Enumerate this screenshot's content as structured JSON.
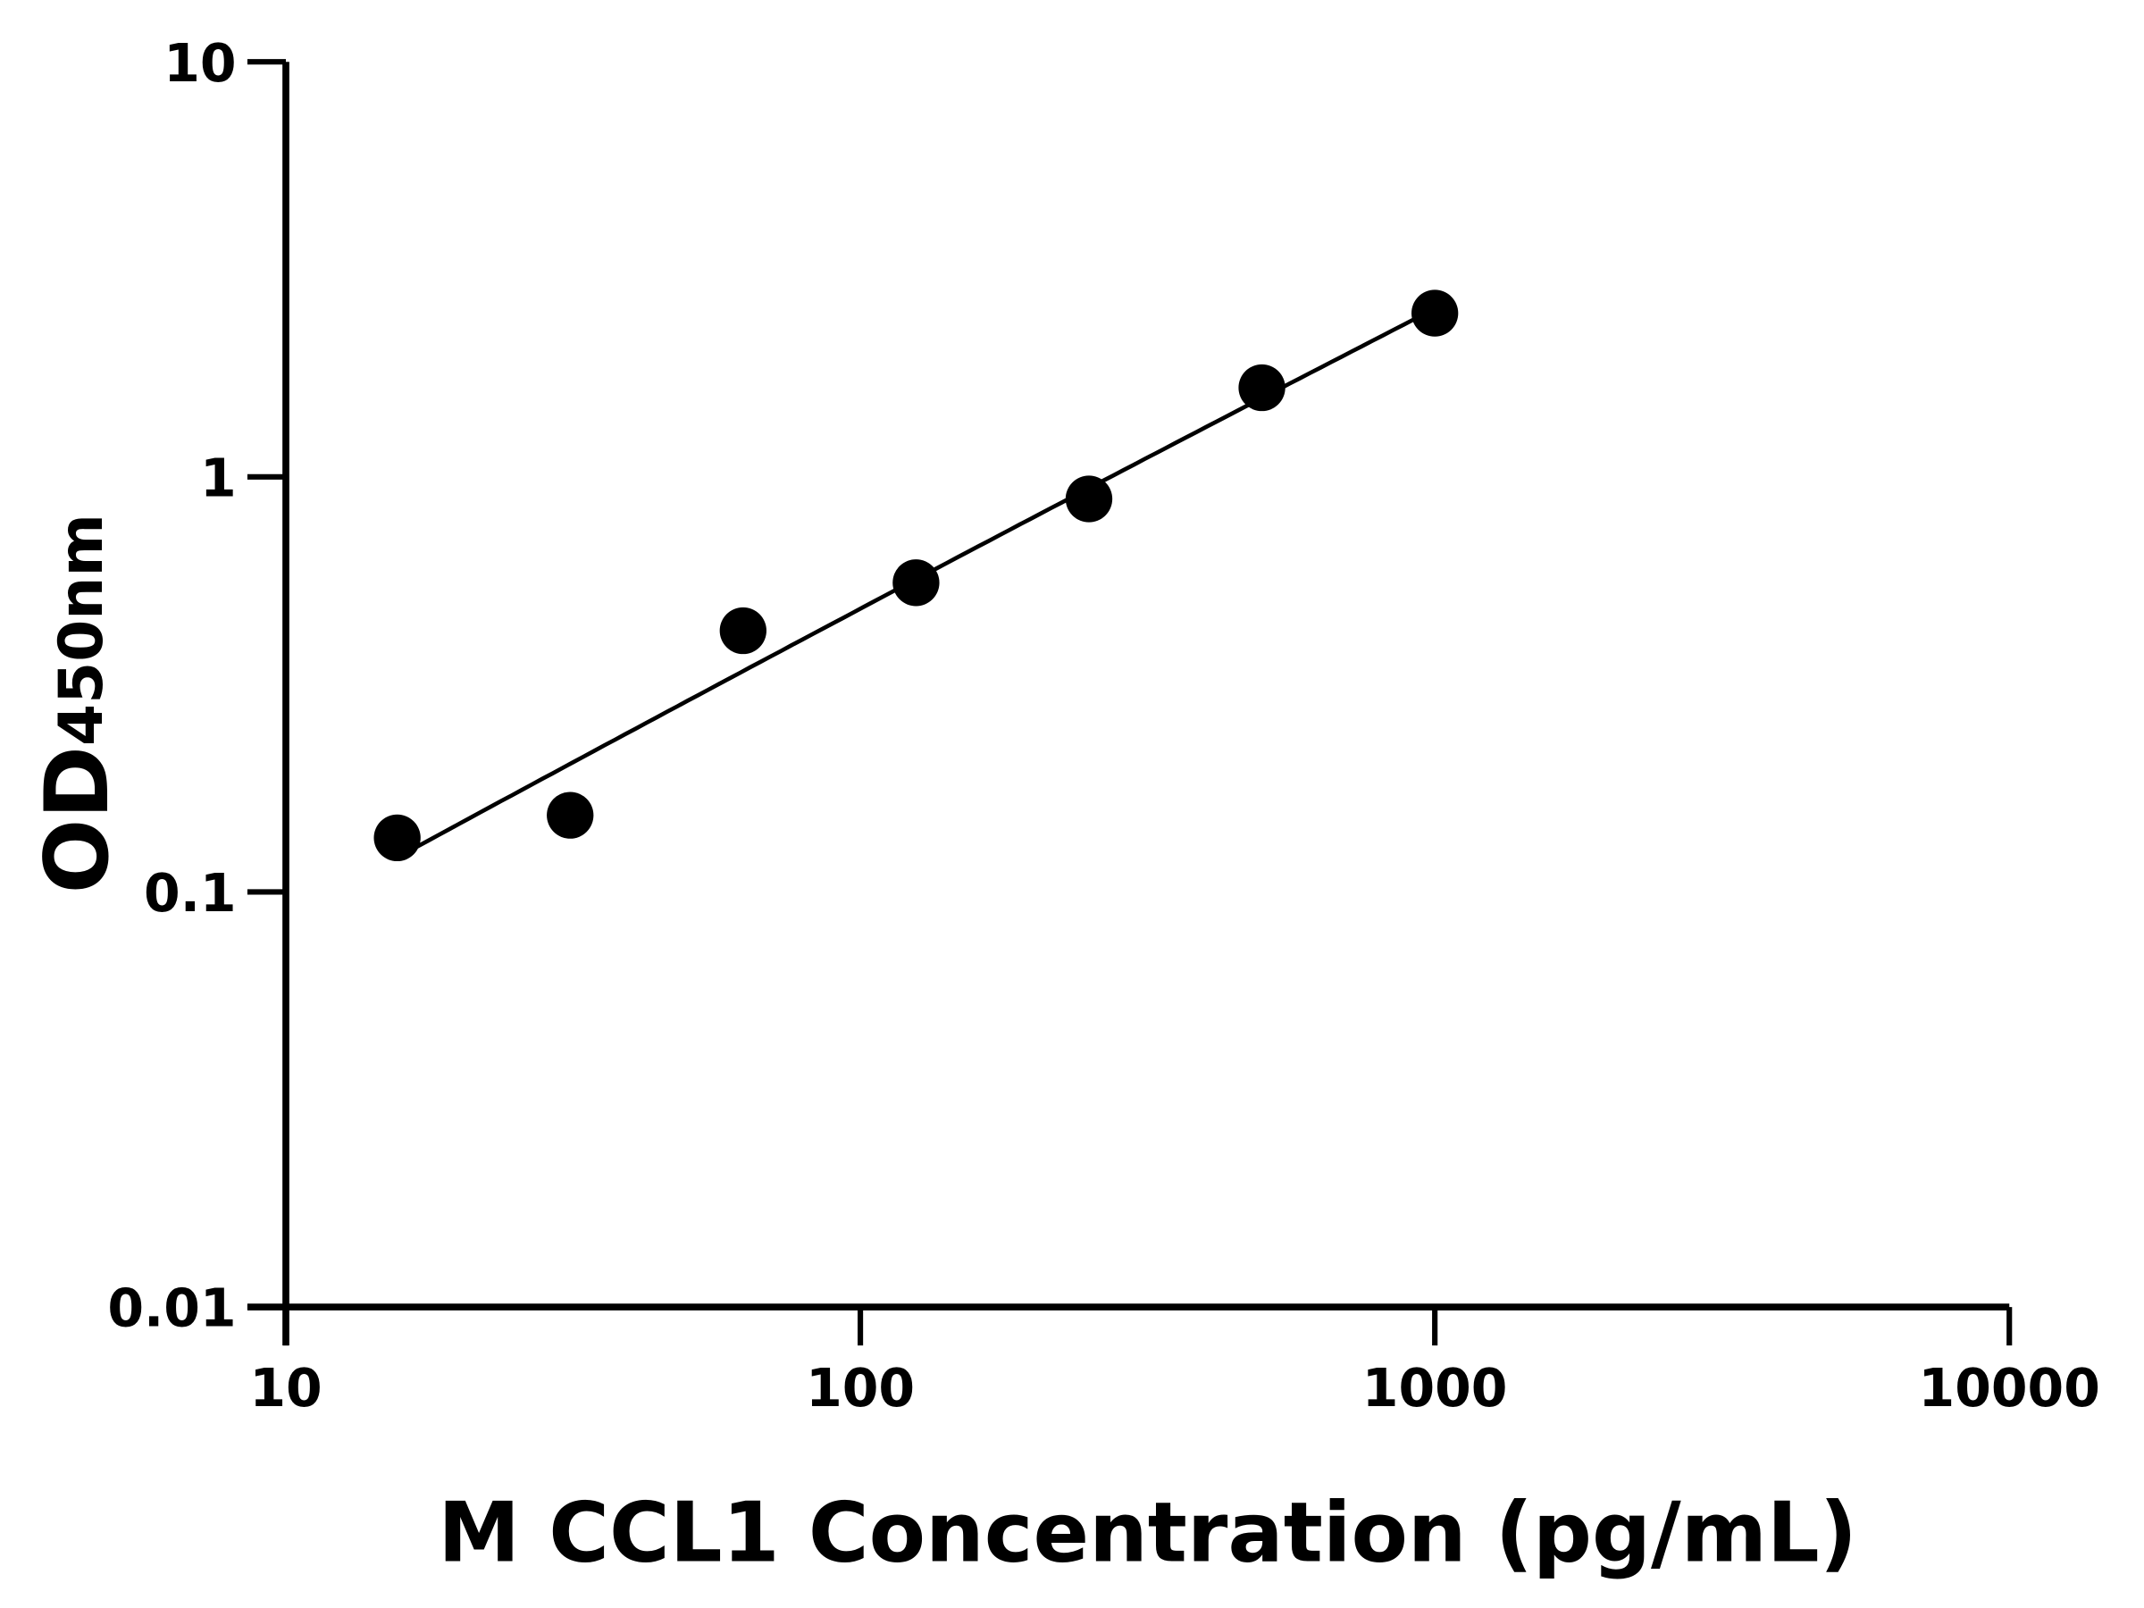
{
  "chart_data": {
    "type": "scatter",
    "title": "",
    "xlabel": "M CCL1 Concentration (pg/mL)",
    "ylabel_main": "OD",
    "ylabel_sub": "450nm",
    "xscale": "log",
    "yscale": "log",
    "xlim": [
      10,
      10000
    ],
    "ylim": [
      0.01,
      10
    ],
    "xticks": [
      "10",
      "100",
      "1000",
      "10000"
    ],
    "yticks": [
      "0.01",
      "0.1",
      "1",
      "10"
    ],
    "grid": false,
    "fit_curve": true,
    "marker_color": "#000000",
    "points": [
      {
        "x": 15.625,
        "y": 0.135
      },
      {
        "x": 31.25,
        "y": 0.153
      },
      {
        "x": 62.5,
        "y": 0.426
      },
      {
        "x": 125,
        "y": 0.556
      },
      {
        "x": 250,
        "y": 0.885
      },
      {
        "x": 500,
        "y": 1.64
      },
      {
        "x": 1000,
        "y": 2.48
      }
    ]
  }
}
